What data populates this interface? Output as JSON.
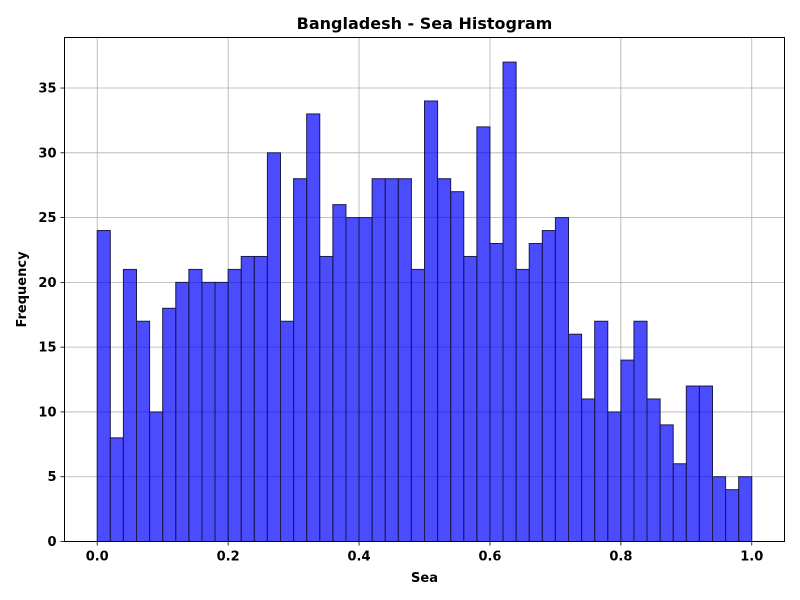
{
  "chart_data": {
    "type": "bar",
    "title": "Bangladesh - Sea Histogram",
    "xlabel": "Sea",
    "ylabel": "Frequency",
    "xlim": [
      -0.05,
      1.05
    ],
    "ylim": [
      0,
      38.9
    ],
    "x_ticks": [
      0.0,
      0.2,
      0.4,
      0.6,
      0.8,
      1.0
    ],
    "x_tick_labels": [
      "0.0",
      "0.2",
      "0.4",
      "0.6",
      "0.8",
      "1.0"
    ],
    "y_ticks": [
      0,
      5,
      10,
      15,
      20,
      25,
      30,
      35
    ],
    "y_tick_labels": [
      "0",
      "5",
      "10",
      "15",
      "20",
      "25",
      "30",
      "35"
    ],
    "bin_start": 0.0,
    "bin_end": 1.0,
    "bins": 50,
    "values": [
      24,
      8,
      21,
      17,
      10,
      18,
      20,
      21,
      20,
      20,
      21,
      22,
      22,
      30,
      17,
      28,
      33,
      22,
      26,
      25,
      25,
      28,
      28,
      28,
      21,
      34,
      28,
      27,
      22,
      32,
      23,
      37,
      21,
      23,
      24,
      25,
      16,
      11,
      17,
      10,
      14,
      17,
      11,
      9,
      6,
      12,
      12,
      5,
      4,
      5
    ],
    "grid": true,
    "bar_color": "#0000ff",
    "bar_opacity": 0.7,
    "edge_color": "#1a1a4d"
  }
}
